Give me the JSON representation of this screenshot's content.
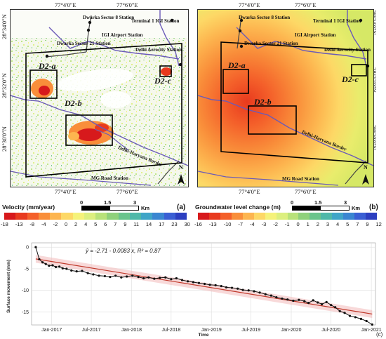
{
  "panel_a": {
    "coords_top": [
      "77°4'0\"E",
      "77°6'0\"E"
    ],
    "coords_bottom": [
      "77°4'0\"E",
      "77°6'0\"E"
    ],
    "coords_left": [
      "28°34'0\"N",
      "28°32'0\"N",
      "28°30'0\"N"
    ],
    "places": [
      "Dwarka Sector 8 Station",
      "Terminal 1 IGI Station",
      "IGI Airport Station",
      "Dwarka Sector 21 Station",
      "Delhi Aerocity Station",
      "Delhi-Haryana Border",
      "MG Road Station"
    ],
    "zones": [
      "D2-a",
      "D2-b",
      "D2-c"
    ],
    "north": "N",
    "letter": "(a)",
    "scale_labels": [
      "0",
      "1.5",
      "3",
      "Km"
    ]
  },
  "panel_b": {
    "coords_top": [
      "77°4'0\"E",
      "77°6'0\"E"
    ],
    "coords_bottom": [
      "77°4'0\"E",
      "77°6'0\"E"
    ],
    "coords_right": [
      "28°34'0\"N",
      "28°32'0\"N",
      "28°30'0\"N"
    ],
    "places": [
      "Dwarka Sector 8 Station",
      "Terminal 1 IGI Station",
      "IGI Airport Station",
      "Dwarka Sector 21 Station",
      "Delhi Aerocity Station",
      "Delhi-Haryana Border",
      "MG Road Station"
    ],
    "zones": [
      "D2-a",
      "D2-b",
      "D2-c"
    ],
    "north": "N",
    "letter": "(b)",
    "scale_labels": [
      "0",
      "1.5",
      "3",
      "Km"
    ]
  },
  "legend_a": {
    "title": "Velocity (mm/year)",
    "ticks": [
      "-18",
      "-13",
      "-8",
      "-4",
      "-2",
      "0",
      "2",
      "4",
      "5",
      "6",
      "7",
      "9",
      "11",
      "14",
      "17",
      "23",
      "30"
    ],
    "colors": [
      "#d7191c",
      "#e83a1e",
      "#f4602a",
      "#f98e3a",
      "#fdb54f",
      "#fdd866",
      "#f5f27a",
      "#dcef7f",
      "#b8e27a",
      "#8fd17b",
      "#6ac48c",
      "#4fb8a9",
      "#3fa5c7",
      "#3a86d1",
      "#3a5fd4",
      "#2c3fc0"
    ]
  },
  "legend_b": {
    "title": "Groundwater level change (m)",
    "ticks": [
      "-16",
      "-13",
      "-10",
      "-7",
      "-4",
      "-3",
      "-2",
      "-1",
      "0",
      "1",
      "2",
      "3",
      "4",
      "5",
      "7",
      "9",
      "12"
    ],
    "colors": [
      "#d7191c",
      "#e83a1e",
      "#f4602a",
      "#f98e3a",
      "#fdb54f",
      "#fdd866",
      "#f5f27a",
      "#dcef7f",
      "#b8e27a",
      "#8fd17b",
      "#6ac48c",
      "#4fb8a9",
      "#3fa5c7",
      "#3a86d1",
      "#3a5fd4",
      "#2c3fc0"
    ]
  },
  "chart_data": {
    "type": "line",
    "equation": "ŷ = -2.71 - 0.0083 x, R² = 0.87",
    "ylabel": "Surface movement (mm)",
    "xlabel": "Time",
    "letter": "(c)",
    "yticks": [
      "0",
      "-5",
      "-10",
      "-15"
    ],
    "ylim": [
      -18,
      1
    ],
    "xticks": [
      "Jan-2017",
      "Jul-2017",
      "Jan-2018",
      "Jul-2018",
      "Jan-2019",
      "Jul-2019",
      "Jan-2020",
      "Jul-2020",
      "Jan-2021"
    ],
    "xlim": [
      "2016-10-01",
      "2021-01-20"
    ],
    "fit": {
      "intercept": -2.71,
      "slope_per_day": -0.0083,
      "r2": 0.87
    },
    "series": [
      {
        "x": [
          "2016-10-20",
          "2016-11-05",
          "2016-11-20",
          "2016-12-05",
          "2016-12-20",
          "2017-01-05",
          "2017-01-20",
          "2017-02-05",
          "2017-02-20",
          "2017-03-10",
          "2017-04-01",
          "2017-04-25",
          "2017-05-20",
          "2017-06-15",
          "2017-07-10",
          "2017-08-05",
          "2017-09-01",
          "2017-09-25",
          "2017-10-20",
          "2017-11-15",
          "2017-12-10",
          "2018-01-05",
          "2018-02-01",
          "2018-02-25",
          "2018-03-20",
          "2018-04-15",
          "2018-05-10",
          "2018-06-05",
          "2018-07-01",
          "2018-07-25",
          "2018-08-20",
          "2018-09-15",
          "2018-10-10",
          "2018-11-05",
          "2018-12-01",
          "2018-12-25",
          "2019-01-20",
          "2019-02-15",
          "2019-03-10",
          "2019-04-05",
          "2019-05-01",
          "2019-05-25",
          "2019-06-20",
          "2019-07-15",
          "2019-08-10",
          "2019-09-05",
          "2019-10-01",
          "2019-10-25",
          "2019-11-20",
          "2019-12-15",
          "2020-01-10",
          "2020-02-05",
          "2020-03-01",
          "2020-03-20",
          "2020-04-10",
          "2020-05-01",
          "2020-05-20",
          "2020-06-10",
          "2020-07-01",
          "2020-07-20",
          "2020-08-10",
          "2020-09-01",
          "2020-09-25",
          "2020-10-20",
          "2020-11-15",
          "2020-12-10",
          "2021-01-05"
        ],
        "y": [
          0,
          -2.8,
          -3.5,
          -3.9,
          -4.3,
          -4.2,
          -4.6,
          -4.5,
          -4.9,
          -5.0,
          -5.4,
          -5.6,
          -5.5,
          -6.0,
          -6.3,
          -6.6,
          -6.7,
          -6.9,
          -6.6,
          -7.0,
          -6.8,
          -6.6,
          -6.9,
          -7.2,
          -7.0,
          -7.3,
          -7.1,
          -7.0,
          -7.4,
          -7.2,
          -7.6,
          -7.9,
          -8.1,
          -8.3,
          -8.5,
          -8.7,
          -8.8,
          -9.0,
          -9.3,
          -9.4,
          -9.6,
          -9.9,
          -10.0,
          -10.2,
          -10.5,
          -10.9,
          -11.2,
          -11.6,
          -11.9,
          -12.1,
          -12.4,
          -12.2,
          -12.5,
          -12.9,
          -12.3,
          -12.8,
          -13.2,
          -12.7,
          -13.4,
          -13.9,
          -14.8,
          -15.2,
          -15.9,
          -16.2,
          -16.6,
          -17.1,
          -17.9
        ]
      }
    ]
  }
}
